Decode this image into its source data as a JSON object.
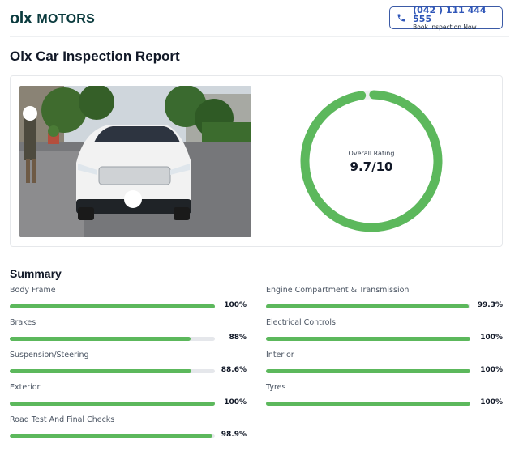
{
  "header": {
    "logo_olx": "olx",
    "logo_motors": "MOTORS",
    "phone_number": "(042 ) 111 444 555",
    "book_label": "Book Inspection Now"
  },
  "page_title": "Olx Car Inspection Report",
  "rating": {
    "label": "Overall Rating",
    "value_text": "9.7/10",
    "fraction": 0.97,
    "color": "#5cb85c"
  },
  "summary": {
    "title": "Summary",
    "left": [
      {
        "label": "Body Frame",
        "value": "100%",
        "percent": 100
      },
      {
        "label": "Brakes",
        "value": "88%",
        "percent": 88
      },
      {
        "label": "Suspension/Steering",
        "value": "88.6%",
        "percent": 88.6
      },
      {
        "label": "Exterior",
        "value": "100%",
        "percent": 100
      },
      {
        "label": "Road Test And Final Checks",
        "value": "98.9%",
        "percent": 98.9
      }
    ],
    "right": [
      {
        "label": "Engine Compartment & Transmission",
        "value": "99.3%",
        "percent": 99.3
      },
      {
        "label": "Electrical Controls",
        "value": "100%",
        "percent": 100
      },
      {
        "label": "Interior",
        "value": "100%",
        "percent": 100
      },
      {
        "label": "Tyres",
        "value": "100%",
        "percent": 100
      }
    ]
  },
  "colors": {
    "brand": "#0b3b3e",
    "accent_blue": "#2f56b8",
    "progress_green": "#5cb85c",
    "track_gray": "#e5e7eb"
  },
  "icons": {
    "phone": "phone-icon",
    "logo": "olx-logo"
  }
}
